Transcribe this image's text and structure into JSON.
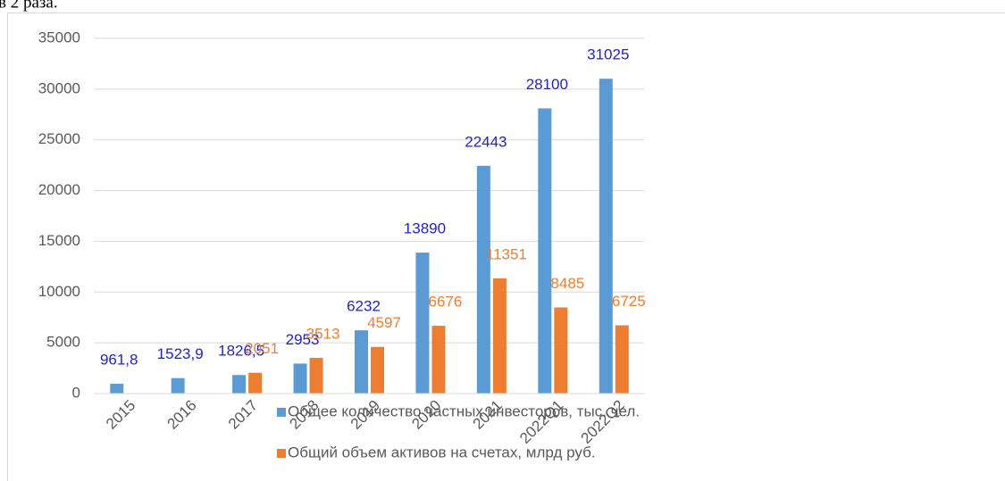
{
  "page_text": "в 2 раза.",
  "chart_data": {
    "type": "bar",
    "categories": [
      "2015",
      "2016",
      "2017",
      "2018",
      "2019",
      "2020",
      "2021",
      "2022Q1",
      "2022Q2"
    ],
    "series": [
      {
        "name": "Общее количество частных инвесторов, тыс. чел.",
        "color": "#5b9bd5",
        "label_color": "#1f1fd6",
        "values": [
          961.8,
          1523.9,
          1826.5,
          2953,
          6232,
          13890,
          22443,
          28100,
          31025
        ],
        "value_labels": [
          "961,8",
          "1523,9",
          "1826,5",
          "2953",
          "6232",
          "13890",
          "22443",
          "28100",
          "31025"
        ]
      },
      {
        "name": "Общий объем активов на счетах, млрд руб.",
        "color": "#ed7d31",
        "label_color": "#ed7d31",
        "values": [
          null,
          null,
          2051,
          3513,
          4597,
          6676,
          11351,
          8485,
          6725
        ]
      }
    ],
    "ylim": [
      0,
      35000
    ],
    "yticks": [
      0,
      5000,
      10000,
      15000,
      20000,
      25000,
      30000,
      35000
    ],
    "grid": true
  }
}
